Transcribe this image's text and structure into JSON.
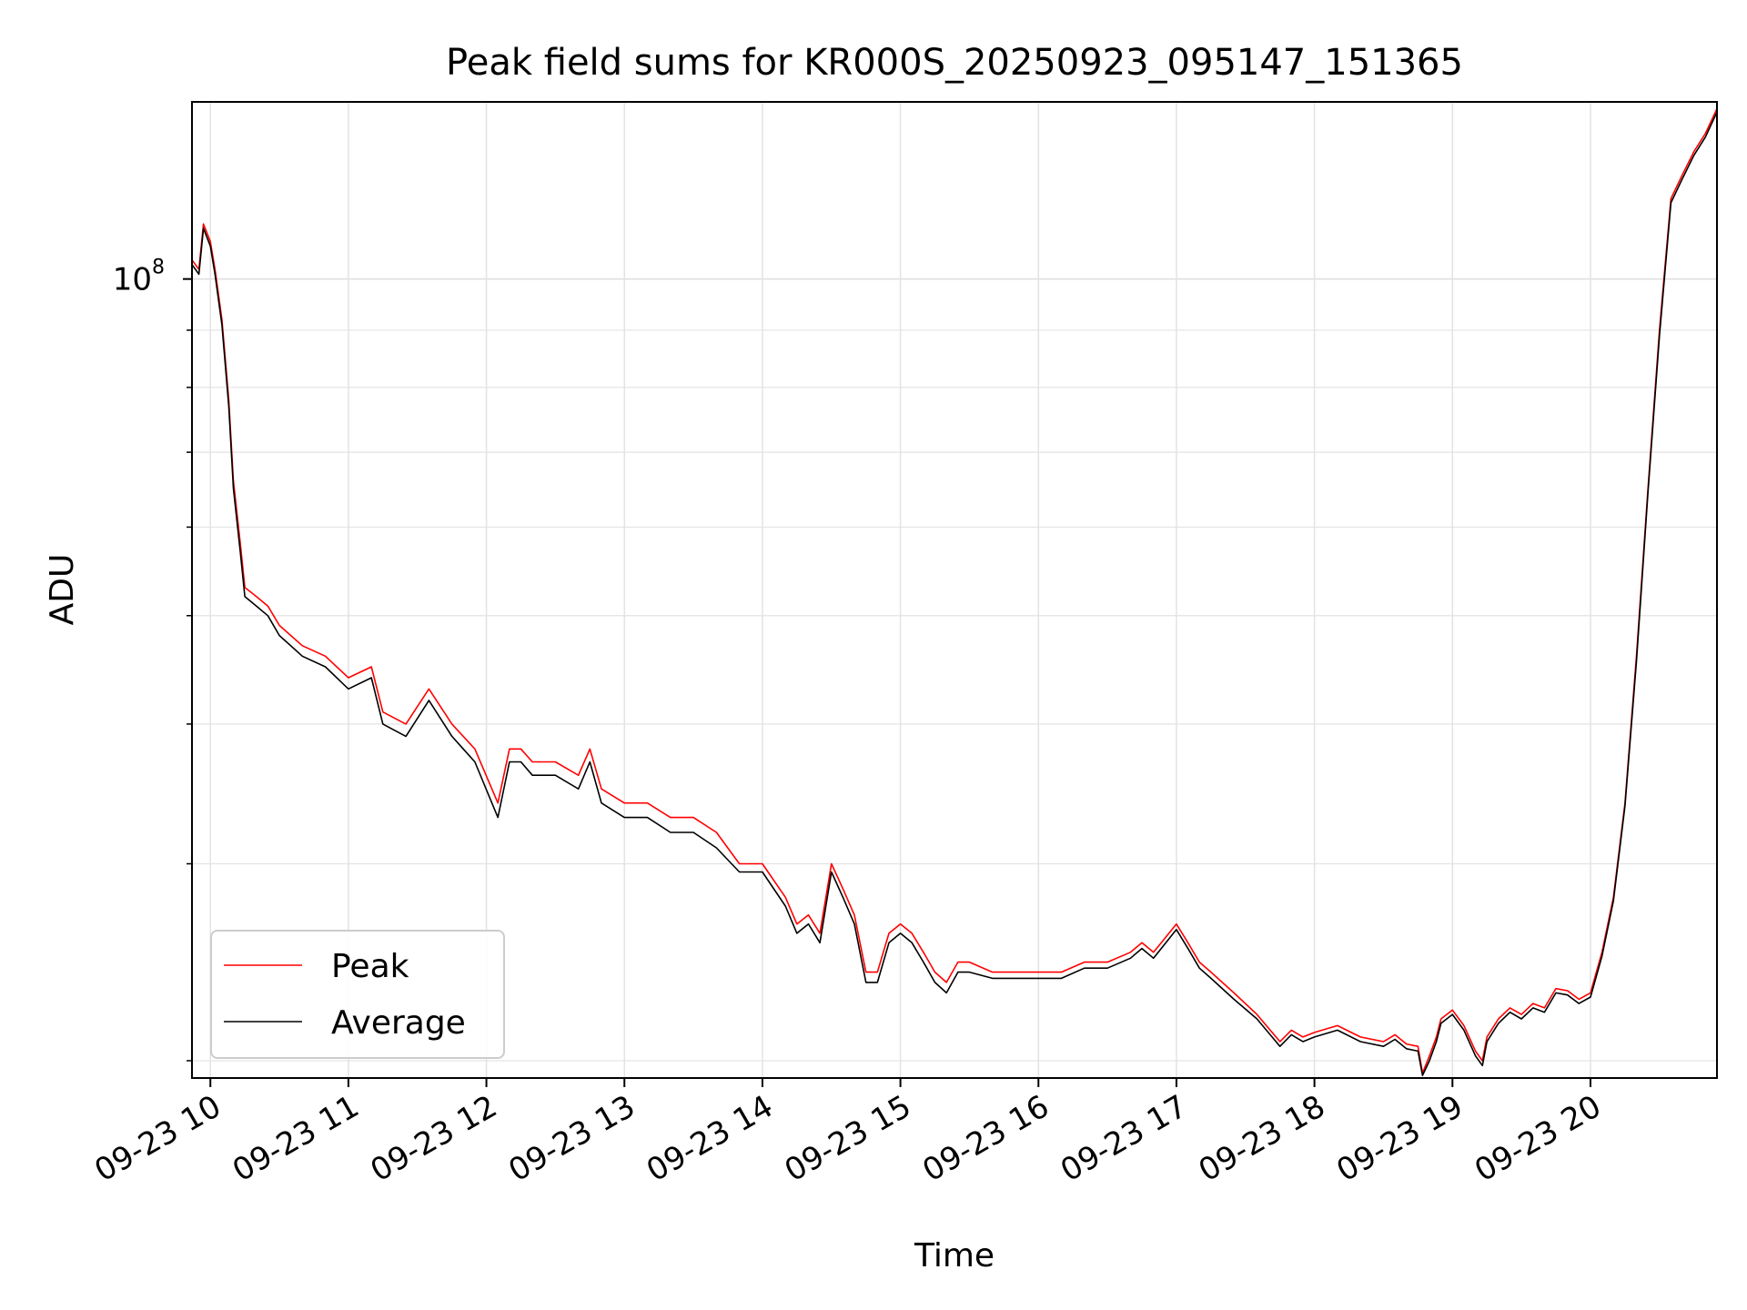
{
  "chart_data": {
    "type": "line",
    "title": "Peak field sums for KR000S_20250923_095147_151365",
    "xlabel": "Time",
    "ylabel": "ADU",
    "y_scale": "log",
    "grid": true,
    "grid_minor": true,
    "legend_placement": "lower-left",
    "x_ticks": [
      "09-23 10",
      "09-23 11",
      "09-23 12",
      "09-23 13",
      "09-23 14",
      "09-23 15",
      "09-23 16",
      "09-23 17",
      "09-23 18",
      "09-23 19",
      "09-23 20"
    ],
    "y_major_tick_label": "10^8",
    "y_major_tick_value": 100000000,
    "xlim": [
      "2025-09-23 09:52",
      "2025-09-23 20:55"
    ],
    "ylim": [
      19300000,
      144000000
    ],
    "x": [
      "2025-09-23 09:52",
      "2025-09-23 09:55",
      "2025-09-23 09:57",
      "2025-09-23 10:00",
      "2025-09-23 10:02",
      "2025-09-23 10:05",
      "2025-09-23 10:08",
      "2025-09-23 10:10",
      "2025-09-23 10:13",
      "2025-09-23 10:15",
      "2025-09-23 10:20",
      "2025-09-23 10:25",
      "2025-09-23 10:30",
      "2025-09-23 10:40",
      "2025-09-23 10:50",
      "2025-09-23 11:00",
      "2025-09-23 11:10",
      "2025-09-23 11:15",
      "2025-09-23 11:25",
      "2025-09-23 11:35",
      "2025-09-23 11:45",
      "2025-09-23 11:55",
      "2025-09-23 12:05",
      "2025-09-23 12:10",
      "2025-09-23 12:15",
      "2025-09-23 12:20",
      "2025-09-23 12:30",
      "2025-09-23 12:40",
      "2025-09-23 12:45",
      "2025-09-23 12:50",
      "2025-09-23 13:00",
      "2025-09-23 13:10",
      "2025-09-23 13:20",
      "2025-09-23 13:30",
      "2025-09-23 13:40",
      "2025-09-23 13:50",
      "2025-09-23 14:00",
      "2025-09-23 14:10",
      "2025-09-23 14:15",
      "2025-09-23 14:20",
      "2025-09-23 14:25",
      "2025-09-23 14:30",
      "2025-09-23 14:35",
      "2025-09-23 14:40",
      "2025-09-23 14:45",
      "2025-09-23 14:50",
      "2025-09-23 14:55",
      "2025-09-23 15:00",
      "2025-09-23 15:05",
      "2025-09-23 15:10",
      "2025-09-23 15:15",
      "2025-09-23 15:20",
      "2025-09-23 15:25",
      "2025-09-23 15:30",
      "2025-09-23 15:40",
      "2025-09-23 15:50",
      "2025-09-23 16:00",
      "2025-09-23 16:10",
      "2025-09-23 16:20",
      "2025-09-23 16:30",
      "2025-09-23 16:40",
      "2025-09-23 16:45",
      "2025-09-23 16:50",
      "2025-09-23 17:00",
      "2025-09-23 17:05",
      "2025-09-23 17:10",
      "2025-09-23 17:15",
      "2025-09-23 17:25",
      "2025-09-23 17:35",
      "2025-09-23 17:45",
      "2025-09-23 17:50",
      "2025-09-23 17:55",
      "2025-09-23 18:00",
      "2025-09-23 18:10",
      "2025-09-23 18:20",
      "2025-09-23 18:30",
      "2025-09-23 18:35",
      "2025-09-23 18:40",
      "2025-09-23 18:45",
      "2025-09-23 18:47",
      "2025-09-23 18:50",
      "2025-09-23 18:53",
      "2025-09-23 18:55",
      "2025-09-23 19:00",
      "2025-09-23 19:05",
      "2025-09-23 19:10",
      "2025-09-23 19:13",
      "2025-09-23 19:15",
      "2025-09-23 19:20",
      "2025-09-23 19:25",
      "2025-09-23 19:30",
      "2025-09-23 19:35",
      "2025-09-23 19:40",
      "2025-09-23 19:45",
      "2025-09-23 19:50",
      "2025-09-23 19:55",
      "2025-09-23 20:00",
      "2025-09-23 20:05",
      "2025-09-23 20:10",
      "2025-09-23 20:15",
      "2025-09-23 20:20",
      "2025-09-23 20:25",
      "2025-09-23 20:30",
      "2025-09-23 20:35",
      "2025-09-23 20:40",
      "2025-09-23 20:45",
      "2025-09-23 20:50",
      "2025-09-23 20:55"
    ],
    "series": [
      {
        "name": "Peak",
        "color": "#ff0000",
        "values": [
          104000000,
          102000000,
          112000000,
          108000000,
          102000000,
          92000000,
          78000000,
          66000000,
          58000000,
          53000000,
          52000000,
          51000000,
          49000000,
          47000000,
          46000000,
          44000000,
          45000000,
          41000000,
          40000000,
          43000000,
          40000000,
          38000000,
          34000000,
          38000000,
          38000000,
          37000000,
          37000000,
          36000000,
          38000000,
          35000000,
          34000000,
          34000000,
          33000000,
          33000000,
          32000000,
          30000000,
          30000000,
          28000000,
          26500000,
          27000000,
          26000000,
          30000000,
          28500000,
          27000000,
          24000000,
          24000000,
          26000000,
          26500000,
          26000000,
          25000000,
          24000000,
          23500000,
          24500000,
          24500000,
          24000000,
          24000000,
          24000000,
          24000000,
          24500000,
          24500000,
          25000000,
          25500000,
          25000000,
          26500000,
          25500000,
          24500000,
          24000000,
          23000000,
          22000000,
          20800000,
          21300000,
          21000000,
          21200000,
          21500000,
          21000000,
          20800000,
          21100000,
          20700000,
          20600000,
          19500000,
          20200000,
          21000000,
          21800000,
          22200000,
          21500000,
          20400000,
          20000000,
          21000000,
          21800000,
          22300000,
          22000000,
          22500000,
          22300000,
          23200000,
          23100000,
          22700000,
          23000000,
          25000000,
          28000000,
          34000000,
          46000000,
          65000000,
          90000000,
          118000000,
          124000000,
          130000000,
          135000000,
          142000000
        ]
      },
      {
        "name": "Average",
        "color": "#000000",
        "values": [
          103000000,
          101000000,
          111000000,
          107000000,
          101000000,
          91000000,
          77000000,
          65000000,
          57000000,
          52000000,
          51000000,
          50000000,
          48000000,
          46000000,
          45000000,
          43000000,
          44000000,
          40000000,
          39000000,
          42000000,
          39000000,
          37000000,
          33000000,
          37000000,
          37000000,
          36000000,
          36000000,
          35000000,
          37000000,
          34000000,
          33000000,
          33000000,
          32000000,
          32000000,
          31000000,
          29500000,
          29500000,
          27500000,
          26000000,
          26500000,
          25500000,
          29500000,
          28000000,
          26500000,
          23500000,
          23500000,
          25500000,
          26000000,
          25500000,
          24500000,
          23500000,
          23000000,
          24000000,
          24000000,
          23700000,
          23700000,
          23700000,
          23700000,
          24200000,
          24200000,
          24700000,
          25200000,
          24700000,
          26200000,
          25200000,
          24200000,
          23700000,
          22700000,
          21800000,
          20600000,
          21100000,
          20800000,
          21000000,
          21300000,
          20800000,
          20600000,
          20900000,
          20500000,
          20400000,
          19400000,
          20000000,
          20800000,
          21600000,
          22000000,
          21300000,
          20200000,
          19800000,
          20800000,
          21600000,
          22100000,
          21800000,
          22300000,
          22100000,
          23000000,
          22900000,
          22500000,
          22800000,
          24800000,
          27800000,
          33800000,
          45500000,
          64500000,
          89000000,
          117000000,
          123000000,
          129000000,
          134000000,
          141000000
        ]
      }
    ]
  }
}
